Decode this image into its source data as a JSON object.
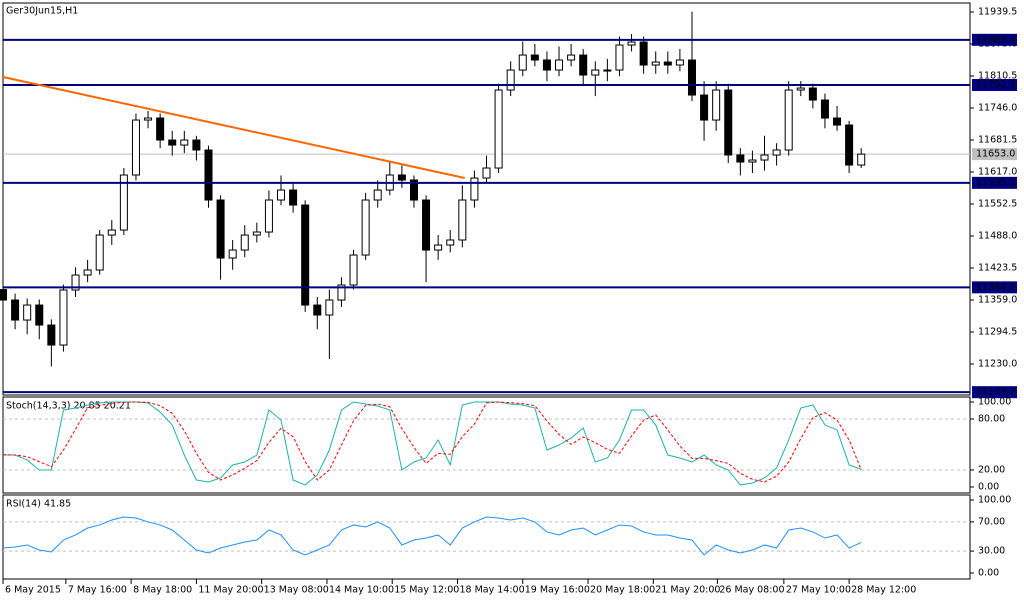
{
  "chart_data": {
    "type": "candlestick",
    "title": "Ger30Jun15,H1",
    "x": [
      0,
      1,
      2,
      3,
      4,
      5,
      6,
      7,
      8,
      9,
      10,
      11,
      12,
      13,
      14,
      15,
      16,
      17,
      18,
      19,
      20,
      21,
      22,
      23,
      24,
      25,
      26,
      27,
      28,
      29,
      30,
      31,
      32,
      33,
      34,
      35,
      36,
      37,
      38,
      39,
      40,
      41,
      42,
      43,
      44,
      45,
      46,
      47,
      48,
      49,
      50,
      51,
      52,
      53,
      54,
      55,
      56,
      57,
      58,
      59,
      60,
      61,
      62,
      63,
      64,
      65,
      66,
      67,
      68,
      69,
      70,
      71
    ],
    "open": [
      11380.0,
      11358.9,
      11318.6,
      11348.8,
      11308.5,
      11268.2,
      11379.1,
      11409.3,
      11419.4,
      11489.9,
      11500.0,
      11610.9,
      11721.7,
      11725.8,
      11681.4,
      11671.3,
      11681.4,
      11661.3,
      11560.5,
      11443.6,
      11459.7,
      11489.9,
      11496.0,
      11560.5,
      11580.6,
      11550.4,
      11348.8,
      11328.7,
      11358.9,
      11389.2,
      11449.6,
      11560.5,
      11580.6,
      11610.9,
      11600.8,
      11560.5,
      11459.7,
      11469.8,
      11479.9,
      11560.5,
      11604.8,
      11625.0,
      11782.2,
      11822.5,
      11852.7,
      11842.7,
      11822.5,
      11842.7,
      11852.7,
      11812.4,
      11822.5,
      11822.5,
      11872.9,
      11878.9,
      11832.6,
      11838.6,
      11832.6,
      11842.7,
      11772.1,
      11721.7,
      11782.2,
      11651.2,
      11637.1,
      11641.1,
      11651.2,
      11661.3,
      11782.2,
      11786.2,
      11762.0,
      11725.8,
      11711.6,
      11631.0
    ],
    "high": [
      11395,
      11372,
      11362,
      11360,
      11320,
      11390,
      11425,
      11440,
      11500,
      11520,
      11625,
      11735,
      11740,
      11735,
      11700,
      11700,
      11690,
      11670,
      11570,
      11480,
      11510,
      11515,
      11580,
      11610,
      11595,
      11560,
      11365,
      11380,
      11405,
      11460,
      11575,
      11600,
      11640,
      11630,
      11610,
      11570,
      11490,
      11500,
      11590,
      11620,
      11650,
      11795,
      11840,
      11880,
      11875,
      11860,
      11870,
      11875,
      11865,
      11840,
      11845,
      11890,
      11895,
      11890,
      11860,
      11860,
      11865,
      11940,
      11800,
      11800,
      11795,
      11665,
      11660,
      11690,
      11675,
      11800,
      11800,
      11795,
      11775,
      11750,
      11720,
      11665
    ],
    "low": [
      11340,
      11300,
      11290,
      11280,
      11225,
      11255,
      11365,
      11395,
      11410,
      11470,
      11490,
      11600,
      11705,
      11665,
      11650,
      11655,
      11640,
      11545,
      11400,
      11420,
      11445,
      11475,
      11485,
      11550,
      11535,
      11335,
      11300,
      11240,
      11345,
      11380,
      11440,
      11545,
      11570,
      11585,
      11545,
      11395,
      11440,
      11455,
      11465,
      11545,
      11595,
      11615,
      11770,
      11810,
      11830,
      11800,
      11810,
      11830,
      11790,
      11770,
      11800,
      11810,
      11860,
      11815,
      11815,
      11815,
      11820,
      11760,
      11680,
      11700,
      11635,
      11610,
      11615,
      11620,
      11630,
      11650,
      11770,
      11745,
      11705,
      11700,
      11615,
      11625
    ],
    "close": [
      11358.9,
      11318.6,
      11348.8,
      11308.5,
      11268.2,
      11379.1,
      11409.3,
      11419.4,
      11489.9,
      11500.0,
      11610.9,
      11721.7,
      11725.8,
      11681.4,
      11671.3,
      11681.4,
      11661.3,
      11560.5,
      11443.6,
      11459.7,
      11489.9,
      11496.0,
      11560.5,
      11580.6,
      11550.4,
      11348.8,
      11328.7,
      11358.9,
      11389.2,
      11449.6,
      11560.5,
      11580.6,
      11610.9,
      11600.8,
      11560.5,
      11459.7,
      11469.8,
      11479.9,
      11560.5,
      11604.8,
      11625.0,
      11782.2,
      11822.5,
      11852.7,
      11842.7,
      11822.5,
      11842.7,
      11852.7,
      11812.4,
      11822.5,
      11822.5,
      11872.9,
      11878.9,
      11832.6,
      11838.6,
      11832.6,
      11842.7,
      11772.1,
      11721.7,
      11782.2,
      11651.2,
      11637.1,
      11641.1,
      11651.2,
      11661.3,
      11782.2,
      11786.2,
      11762.0,
      11725.8,
      11711.6,
      11631.0,
      11653.0
    ],
    "bull_color": "#ffffff",
    "bear_color": "#000000",
    "xlim": [
      0,
      80
    ],
    "xticks": [
      {
        "value": 0,
        "label": "6 May 2015"
      },
      {
        "value": 5.2,
        "label": "7 May 16:00"
      },
      {
        "value": 10.6,
        "label": "8 May 18:00"
      },
      {
        "value": 16.0,
        "label": "11 May 20:00"
      },
      {
        "value": 21.4,
        "label": "13 May 08:00"
      },
      {
        "value": 26.8,
        "label": "14 May 10:00"
      },
      {
        "value": 32.2,
        "label": "15 May 12:00"
      },
      {
        "value": 37.6,
        "label": "18 May 14:00"
      },
      {
        "value": 43.0,
        "label": "19 May 16:00"
      },
      {
        "value": 48.4,
        "label": "20 May 18:00"
      },
      {
        "value": 53.8,
        "label": "21 May 20:00"
      },
      {
        "value": 59.1,
        "label": "26 May 08:00"
      },
      {
        "value": 64.6,
        "label": "27 May 10:00"
      },
      {
        "value": 70.0,
        "label": "28 May 12:00"
      }
    ],
    "ylim": [
      11167.5,
      11957.6
    ],
    "yticks": [
      11939.5,
      {
        "value": 11875.0,
        "label": "11875.0"
      },
      11810.5,
      {
        "value": 11746.0,
        "label": "11746.0"
      },
      11681.5,
      {
        "value": 11617.0,
        "label": "11617.0"
      },
      11552.5,
      {
        "value": 11488.0,
        "label": "11488.0"
      },
      11423.5,
      {
        "value": 11359.0,
        "label": "11359.0"
      },
      11294.5,
      {
        "value": 11230.0,
        "label": "11230.0"
      }
    ],
    "levels": {
      "color": "#000080",
      "values": [
        11883.4,
        11792.3,
        11595.1,
        11384.5,
        11173.2
      ]
    },
    "last_price": {
      "value": 11653.0,
      "label": "11653.0",
      "color": "#c0c0c0"
    },
    "trendline": {
      "color": "#ff6600",
      "x": [
        0,
        38.2
      ],
      "y": [
        11808.4,
        11604.9
      ]
    },
    "indicators": [
      {
        "type": "line",
        "label": "Stoch(14,3,3) 20.85 20.21",
        "ylim": [
          -7.1,
          105.9
        ],
        "yticks": [
          {
            "value": 100,
            "label": "100.00"
          },
          {
            "value": 80,
            "label": "80.00"
          },
          {
            "value": 20,
            "label": "20.00"
          },
          {
            "value": 0,
            "label": "0.00"
          }
        ],
        "levels": [
          80,
          20
        ],
        "series": [
          {
            "color": "#20b2aa",
            "values": [
              37.6,
              37.6,
              31.8,
              20,
              20,
              90.6,
              92.9,
              96.5,
              98.8,
              100,
              100,
              100,
              98.8,
              88.2,
              72.9,
              37.6,
              8.2,
              5.9,
              10.6,
              25.9,
              29.4,
              37.6,
              90.6,
              78.8,
              8.2,
              2.4,
              14.1,
              43.5,
              90.6,
              100,
              97.6,
              95.3,
              90.6,
              20,
              29.4,
              34.1,
              55.3,
              25.9,
              96.5,
              100,
              100,
              100,
              97.6,
              96.5,
              92.9,
              43.5,
              49.4,
              57.6,
              69.4,
              29.4,
              34.1,
              55.3,
              90.6,
              90.6,
              72.9,
              37.6,
              34.1,
              29.4,
              37.6,
              25.9,
              20,
              2.4,
              4.7,
              10.6,
              22.4,
              55.3,
              92.9,
              96.5,
              72.9,
              67.1,
              25.9,
              20.85
            ]
          },
          {
            "color": "#ff0000",
            "dashed": true,
            "values": [
              38,
              37.6,
              35.7,
              29.8,
              23.9,
              43.5,
              67.8,
              93.3,
              96.1,
              98.4,
              99.6,
              100,
              99.6,
              95.7,
              86.6,
              66.2,
              39.6,
              17.2,
              8.2,
              14.1,
              22,
              31,
              52.5,
              69,
              59.2,
              29.8,
              8.2,
              20,
              49.4,
              78,
              96.1,
              97.6,
              94.5,
              68.6,
              46.7,
              27.8,
              39.6,
              38.4,
              59.2,
              74.1,
              98.8,
              100,
              99.2,
              98,
              95.7,
              77.6,
              61.9,
              50.2,
              58.8,
              52.1,
              44.3,
              39.6,
              60,
              78.8,
              84.7,
              67.1,
              48.2,
              33.7,
              33.7,
              31,
              27.8,
              16.1,
              9,
              5.9,
              12.6,
              29.4,
              56.9,
              81.6,
              87.4,
              78.8,
              55.3,
              20.21
            ]
          }
        ]
      },
      {
        "type": "line",
        "label": "RSI(14) 41.85",
        "ylim": [
          -8.2,
          106.8
        ],
        "yticks": [
          {
            "value": 100,
            "label": "100.00"
          },
          {
            "value": 70,
            "label": "70.00"
          },
          {
            "value": 30,
            "label": "30.00"
          },
          {
            "value": 0,
            "label": "0.00"
          }
        ],
        "levels": [
          70,
          30
        ],
        "series": [
          {
            "color": "#1e90ff",
            "values": [
              34.2,
              35.6,
              38.4,
              31.5,
              28.8,
              45.2,
              52.1,
              61.6,
              65.8,
              72.6,
              76.7,
              75.3,
              69.9,
              65.8,
              58.9,
              45.2,
              31.5,
              27.4,
              34.2,
              38.4,
              42.5,
              45.2,
              58.9,
              52.1,
              31.5,
              24.7,
              31.5,
              38.4,
              58.9,
              65.8,
              63,
              69.9,
              61.6,
              38.4,
              45.2,
              47.9,
              52.1,
              38.4,
              61.6,
              69.9,
              76.7,
              75.3,
              72.6,
              75.3,
              69.9,
              56.2,
              52.1,
              58.9,
              61.6,
              52.1,
              58.9,
              65.8,
              64.4,
              56.2,
              52.1,
              52.1,
              47.9,
              45.2,
              24.7,
              38.4,
              31.5,
              27.4,
              31.5,
              38.4,
              34.2,
              58.9,
              61.6,
              56.2,
              47.9,
              52.1,
              34.2,
              41.85
            ]
          }
        ]
      }
    ]
  }
}
